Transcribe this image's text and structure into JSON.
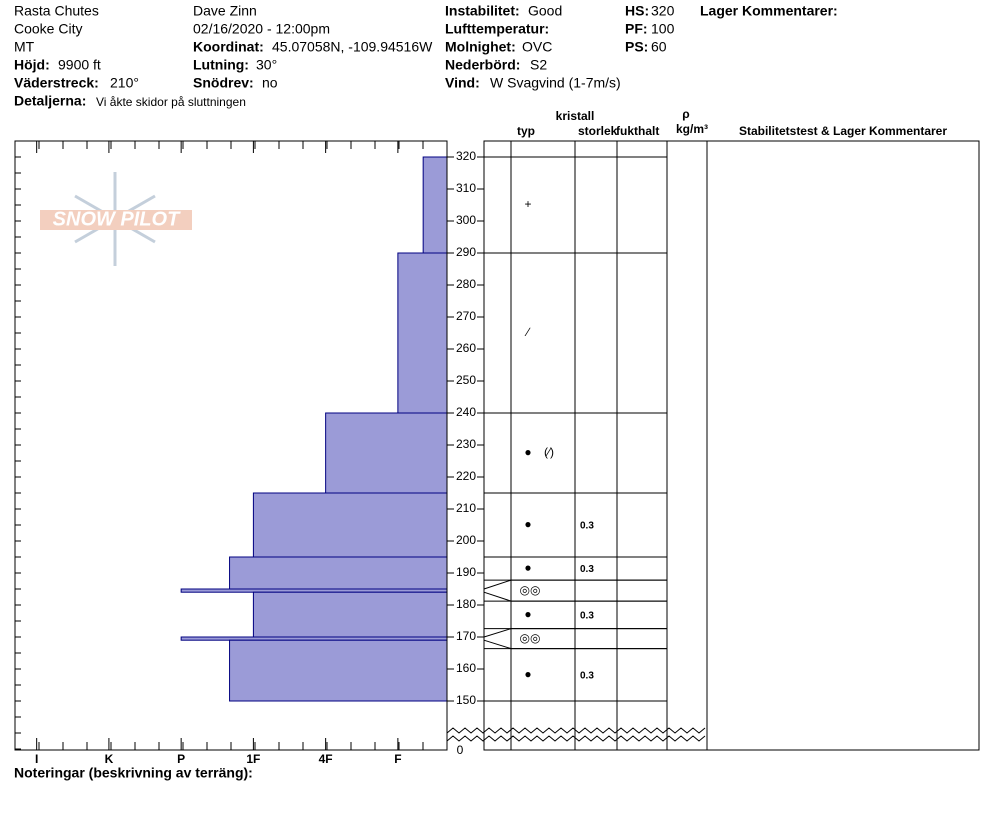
{
  "header": {
    "location": "Rasta Chutes",
    "area": "Cooke City",
    "state": "MT",
    "elevation": {
      "label": "Höjd:",
      "value": "9900 ft"
    },
    "aspect": {
      "label": "Väderstreck:",
      "value": "210°"
    },
    "details": {
      "label": "Detaljerna:",
      "value": "Vi åkte skidor på sluttningen"
    },
    "observer": "Dave Zinn",
    "datetime": "02/16/2020 - 12:00pm",
    "coordinates": {
      "label": "Koordinat:",
      "value": "45.07058N, -109.94516W"
    },
    "slope": {
      "label": "Lutning:",
      "value": "30°"
    },
    "wind_loading": {
      "label": "Snödrev:",
      "value": "no"
    },
    "stability": {
      "label": "Instabilitet:",
      "value": "Good"
    },
    "air_temp": {
      "label": "Lufttemperatur:"
    },
    "sky": {
      "label": "Molnighet:",
      "value": "OVC"
    },
    "precip": {
      "label": "Nederbörd:",
      "value": "S2"
    },
    "wind": {
      "label": "Vind:",
      "value": "W Svagvind (1-7m/s)"
    },
    "hs": {
      "label": "HS:",
      "value": "320"
    },
    "pf": {
      "label": "PF:",
      "value": "100"
    },
    "ps": {
      "label": "PS:",
      "value": "60"
    },
    "layer_comments": "Lager Kommentarer:"
  },
  "logo": "SNOW PILOT",
  "columns": {
    "crystal": "kristall",
    "type": "typ",
    "size": "storlek",
    "moisture": "fukthalt",
    "rho": "ρ",
    "density_unit": "kg/m³",
    "stability": "Stabilitetstest & Lager Kommentarer"
  },
  "footer": "Noteringar (beskrivning av terräng):",
  "chart_data": {
    "type": "snow-profile",
    "color": "#9b9bd7",
    "xlim": [
      6.3,
      0.32
    ],
    "xticks": [
      {
        "value": 6,
        "label": "I"
      },
      {
        "value": 5,
        "label": "K"
      },
      {
        "value": 4,
        "label": "P"
      },
      {
        "value": 3,
        "label": "1F"
      },
      {
        "value": 2,
        "label": "4F"
      },
      {
        "value": 1,
        "label": "F"
      }
    ],
    "ylim": [
      145,
      325
    ],
    "yticks": [
      150,
      160,
      170,
      180,
      190,
      200,
      210,
      220,
      230,
      240,
      250,
      260,
      270,
      280,
      290,
      300,
      310,
      320
    ],
    "break_tick": 0,
    "layers": [
      {
        "top": 320,
        "bottom": 290,
        "hardness": 0.65,
        "grain": "+"
      },
      {
        "top": 290,
        "bottom": 240,
        "hardness": 1,
        "grain": "∕"
      },
      {
        "top": 240,
        "bottom": 215,
        "hardness": 2,
        "grain": "●",
        "grain2": "(∕)"
      },
      {
        "top": 215,
        "bottom": 195,
        "hardness": 3,
        "grain": "●",
        "size": 0.3
      },
      {
        "top": 195,
        "bottom": 185,
        "hardness": 3.33,
        "grain": "●",
        "size": 0.3
      },
      {
        "top": 185,
        "bottom": 184,
        "hardness": 4,
        "grain": "◎◎"
      },
      {
        "top": 184,
        "bottom": 170,
        "hardness": 3,
        "grain": "●",
        "size": 0.3
      },
      {
        "top": 170,
        "bottom": 169,
        "hardness": 4,
        "grain": "◎◎"
      },
      {
        "top": 169,
        "bottom": 150,
        "hardness": 3.33,
        "grain": "●",
        "size": 0.3
      }
    ]
  }
}
